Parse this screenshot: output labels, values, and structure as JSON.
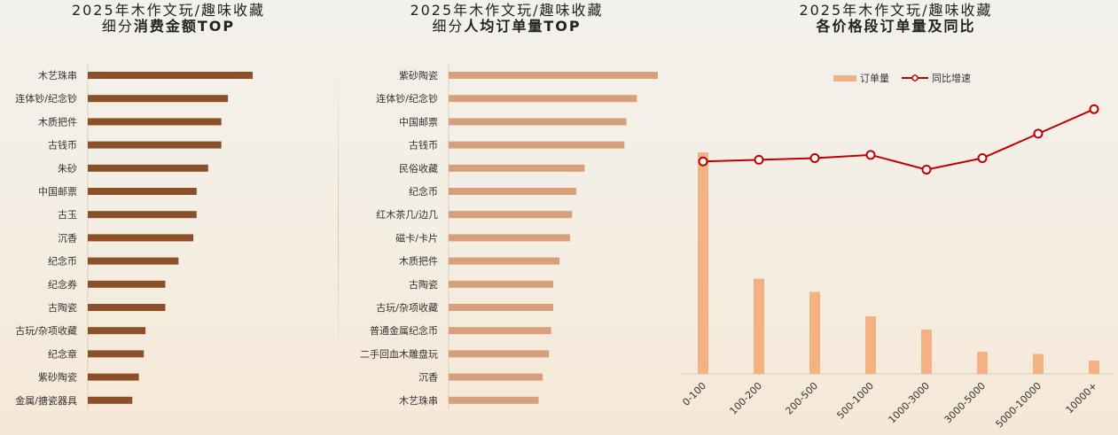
{
  "panels": {
    "left": {
      "title_line1": "2025年木作文玩/趣味收藏",
      "title_prefix": "细分",
      "title_bold": "消费金额TOP"
    },
    "middle": {
      "title_line1": "2025年木作文玩/趣味收藏",
      "title_prefix": "细分",
      "title_bold": "人均订单量TOP"
    },
    "right": {
      "title_line1": "2025年木作文玩/趣味收藏",
      "title_bold": "各价格段订单量及同比"
    }
  },
  "colors": {
    "bar_dark": "#8b5028",
    "bar_light": "#d8a07a",
    "bar_orange": "#f4b183",
    "line_red": "#c00000"
  },
  "chart_data": [
    {
      "type": "bar",
      "orientation": "horizontal",
      "categories": [
        "木艺珠串",
        "连体钞/纪念钞",
        "木质把件",
        "古钱币",
        "朱砂",
        "中国邮票",
        "古玉",
        "沉香",
        "纪念币",
        "纪念券",
        "古陶瓷",
        "古玩/杂项收藏",
        "纪念章",
        "紫砂陶瓷",
        "金属/搪瓷器具"
      ],
      "values": [
        100,
        85,
        81,
        81,
        73,
        66,
        66,
        64,
        55,
        47,
        47,
        35,
        34,
        31,
        27
      ],
      "xlim": [
        0,
        100
      ]
    },
    {
      "type": "bar",
      "orientation": "horizontal",
      "categories": [
        "紫砂陶瓷",
        "连体钞/纪念钞",
        "中国邮票",
        "古钱币",
        "民俗收藏",
        "纪念币",
        "红木茶几/边几",
        "磁卡/卡片",
        "木质把件",
        "古陶瓷",
        "古玩/杂项收藏",
        "普通金属纪念币",
        "二手回血木雕盘玩",
        "沉香",
        "木艺珠串"
      ],
      "values": [
        100,
        90,
        85,
        84,
        65,
        61,
        59,
        58,
        53,
        50,
        50,
        49,
        48,
        45,
        43
      ],
      "xlim": [
        0,
        100
      ]
    },
    {
      "type": "bar+line",
      "categories": [
        "0-100",
        "100-200",
        "200-500",
        "500-1000",
        "1000-3000",
        "3000-5000",
        "5000-10000",
        "10000+"
      ],
      "series": [
        {
          "name": "订单量",
          "type": "bar",
          "values": [
            100,
            43,
            37,
            26,
            20,
            10,
            9,
            6
          ]
        },
        {
          "name": "同比增速",
          "type": "line",
          "values": [
            10,
            11,
            12,
            14,
            5,
            12,
            27,
            42
          ]
        }
      ],
      "ylim_bar": [
        0,
        100
      ],
      "ylim_line": [
        -120,
        60
      ],
      "legend": "top-center"
    }
  ]
}
